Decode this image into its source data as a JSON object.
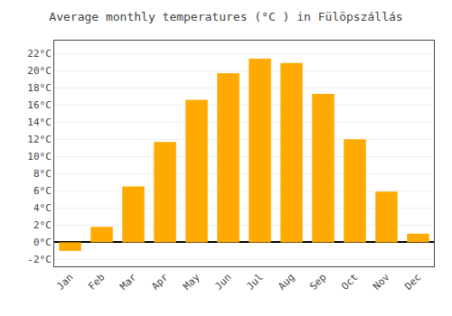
{
  "chart_data": {
    "type": "bar",
    "title": "Average monthly temperatures (°C ) in Fülöpszállás",
    "categories": [
      "Jan",
      "Feb",
      "Mar",
      "Apr",
      "May",
      "Jun",
      "Jul",
      "Aug",
      "Sep",
      "Oct",
      "Nov",
      "Dec"
    ],
    "values": [
      -1.0,
      1.8,
      6.5,
      11.7,
      16.6,
      19.7,
      21.4,
      20.9,
      17.3,
      12.0,
      5.9,
      1.0
    ],
    "color": "#FFAA00",
    "ylim": [
      -2.8,
      23.5
    ],
    "yticks": [
      {
        "value": -2,
        "label": "-2°C"
      },
      {
        "value": 0,
        "label": "0°C"
      },
      {
        "value": 2,
        "label": "2°C"
      },
      {
        "value": 4,
        "label": "4°C"
      },
      {
        "value": 6,
        "label": "6°C"
      },
      {
        "value": 8,
        "label": "8°C"
      },
      {
        "value": 10,
        "label": "10°C"
      },
      {
        "value": 12,
        "label": "12°C"
      },
      {
        "value": 14,
        "label": "14°C"
      },
      {
        "value": 16,
        "label": "16°C"
      },
      {
        "value": 18,
        "label": "18°C"
      },
      {
        "value": 20,
        "label": "20°C"
      },
      {
        "value": 22,
        "label": "22°C"
      }
    ],
    "grid": true
  }
}
